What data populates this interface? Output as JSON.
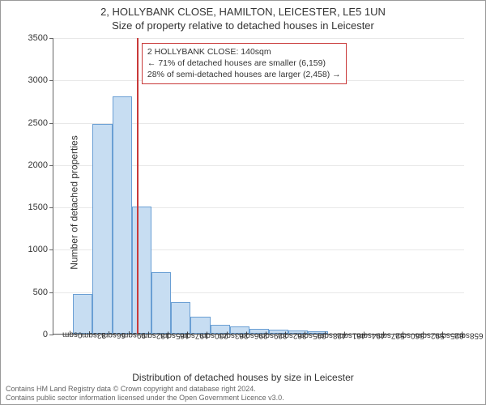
{
  "title_main": "2, HOLLYBANK CLOSE, HAMILTON, LEICESTER, LE5 1UN",
  "title_sub": "Size of property relative to detached houses in Leicester",
  "ylabel": "Number of detached properties",
  "xlabel": "Distribution of detached houses by size in Leicester",
  "footer_line1": "Contains HM Land Registry data © Crown copyright and database right 2024.",
  "footer_line2": "Contains public sector information licensed under the Open Government Licence v3.0.",
  "chart": {
    "type": "histogram",
    "background_color": "#ffffff",
    "grid_color": "#666666",
    "grid_opacity": 0.15,
    "axis_color": "#666666",
    "bar_fill": "#c7ddf2",
    "bar_border": "#6a9fd4",
    "refline_color": "#c93a3a",
    "annot_border": "#c93a3a",
    "ylim": [
      0,
      3500
    ],
    "ytick_step": 500,
    "yticks": [
      0,
      500,
      1000,
      1500,
      2000,
      2500,
      3000,
      3500
    ],
    "x_categories": [
      "0sqm",
      "33sqm",
      "66sqm",
      "99sqm",
      "132sqm",
      "165sqm",
      "197sqm",
      "230sqm",
      "263sqm",
      "296sqm",
      "329sqm",
      "362sqm",
      "395sqm",
      "428sqm",
      "461sqm",
      "494sqm",
      "527sqm",
      "560sqm",
      "592sqm",
      "625sqm",
      "658sqm"
    ],
    "values": [
      0,
      470,
      2480,
      2800,
      1500,
      730,
      370,
      200,
      110,
      85,
      60,
      45,
      35,
      25,
      0,
      0,
      0,
      0,
      0,
      0,
      0
    ],
    "ref_value_sqm": 140,
    "x_max_sqm": 691,
    "title_fontsize": 13,
    "label_fontsize": 12,
    "tick_fontsize": 11,
    "xtick_fontsize": 10
  },
  "annotation": {
    "line1": "2 HOLLYBANK CLOSE: 140sqm",
    "line2": "← 71% of detached houses are smaller (6,159)",
    "line3": "28% of semi-detached houses are larger (2,458) →"
  }
}
